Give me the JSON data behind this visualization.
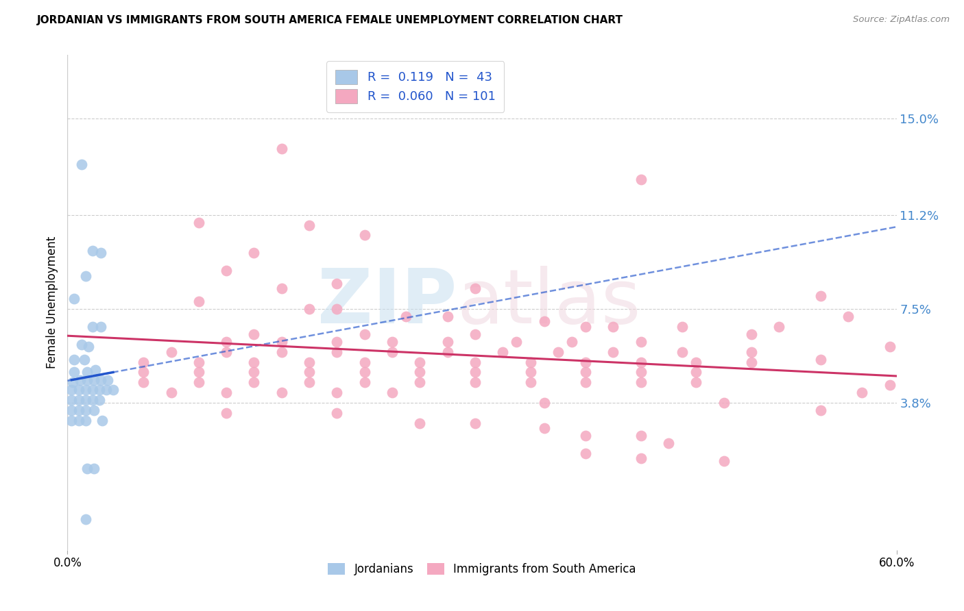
{
  "title": "JORDANIAN VS IMMIGRANTS FROM SOUTH AMERICA FEMALE UNEMPLOYMENT CORRELATION CHART",
  "source": "Source: ZipAtlas.com",
  "ylabel": "Female Unemployment",
  "watermark_zip": "ZIP",
  "watermark_atlas": "atlas",
  "xlim": [
    0.0,
    0.6
  ],
  "ylim": [
    -0.02,
    0.175
  ],
  "y_ticks": [
    0.038,
    0.075,
    0.112,
    0.15
  ],
  "y_tick_labels": [
    "3.8%",
    "7.5%",
    "11.2%",
    "15.0%"
  ],
  "x_ticks": [
    0.0,
    0.6
  ],
  "x_tick_labels": [
    "0.0%",
    "60.0%"
  ],
  "jordan_color": "#a8c8e8",
  "sa_color": "#f4a8c0",
  "jordan_line_color": "#2255cc",
  "sa_line_color": "#cc3366",
  "background_color": "#ffffff",
  "grid_color": "#cccccc",
  "jordan_points": [
    [
      0.01,
      0.132
    ],
    [
      0.018,
      0.098
    ],
    [
      0.024,
      0.097
    ],
    [
      0.013,
      0.088
    ],
    [
      0.005,
      0.079
    ],
    [
      0.018,
      0.068
    ],
    [
      0.024,
      0.068
    ],
    [
      0.01,
      0.061
    ],
    [
      0.015,
      0.06
    ],
    [
      0.005,
      0.055
    ],
    [
      0.012,
      0.055
    ],
    [
      0.005,
      0.05
    ],
    [
      0.014,
      0.05
    ],
    [
      0.02,
      0.051
    ],
    [
      0.004,
      0.046
    ],
    [
      0.009,
      0.047
    ],
    [
      0.014,
      0.047
    ],
    [
      0.019,
      0.047
    ],
    [
      0.024,
      0.047
    ],
    [
      0.029,
      0.047
    ],
    [
      0.003,
      0.043
    ],
    [
      0.008,
      0.043
    ],
    [
      0.013,
      0.043
    ],
    [
      0.018,
      0.043
    ],
    [
      0.023,
      0.043
    ],
    [
      0.028,
      0.043
    ],
    [
      0.033,
      0.043
    ],
    [
      0.003,
      0.039
    ],
    [
      0.008,
      0.039
    ],
    [
      0.013,
      0.039
    ],
    [
      0.018,
      0.039
    ],
    [
      0.023,
      0.039
    ],
    [
      0.003,
      0.035
    ],
    [
      0.008,
      0.035
    ],
    [
      0.013,
      0.035
    ],
    [
      0.019,
      0.035
    ],
    [
      0.003,
      0.031
    ],
    [
      0.008,
      0.031
    ],
    [
      0.013,
      0.031
    ],
    [
      0.025,
      0.031
    ],
    [
      0.014,
      0.012
    ],
    [
      0.019,
      0.012
    ],
    [
      0.013,
      -0.008
    ]
  ],
  "sa_points": [
    [
      0.155,
      0.138
    ],
    [
      0.415,
      0.126
    ],
    [
      0.095,
      0.109
    ],
    [
      0.175,
      0.108
    ],
    [
      0.215,
      0.104
    ],
    [
      0.135,
      0.097
    ],
    [
      0.115,
      0.09
    ],
    [
      0.195,
      0.085
    ],
    [
      0.155,
      0.083
    ],
    [
      0.295,
      0.083
    ],
    [
      0.545,
      0.08
    ],
    [
      0.095,
      0.078
    ],
    [
      0.175,
      0.075
    ],
    [
      0.195,
      0.075
    ],
    [
      0.245,
      0.072
    ],
    [
      0.275,
      0.072
    ],
    [
      0.345,
      0.07
    ],
    [
      0.375,
      0.068
    ],
    [
      0.395,
      0.068
    ],
    [
      0.445,
      0.068
    ],
    [
      0.135,
      0.065
    ],
    [
      0.215,
      0.065
    ],
    [
      0.295,
      0.065
    ],
    [
      0.115,
      0.062
    ],
    [
      0.155,
      0.062
    ],
    [
      0.195,
      0.062
    ],
    [
      0.235,
      0.062
    ],
    [
      0.275,
      0.062
    ],
    [
      0.325,
      0.062
    ],
    [
      0.365,
      0.062
    ],
    [
      0.415,
      0.062
    ],
    [
      0.075,
      0.058
    ],
    [
      0.115,
      0.058
    ],
    [
      0.155,
      0.058
    ],
    [
      0.195,
      0.058
    ],
    [
      0.235,
      0.058
    ],
    [
      0.275,
      0.058
    ],
    [
      0.315,
      0.058
    ],
    [
      0.355,
      0.058
    ],
    [
      0.395,
      0.058
    ],
    [
      0.445,
      0.058
    ],
    [
      0.495,
      0.058
    ],
    [
      0.055,
      0.054
    ],
    [
      0.095,
      0.054
    ],
    [
      0.135,
      0.054
    ],
    [
      0.175,
      0.054
    ],
    [
      0.215,
      0.054
    ],
    [
      0.255,
      0.054
    ],
    [
      0.295,
      0.054
    ],
    [
      0.335,
      0.054
    ],
    [
      0.375,
      0.054
    ],
    [
      0.415,
      0.054
    ],
    [
      0.455,
      0.054
    ],
    [
      0.495,
      0.054
    ],
    [
      0.055,
      0.05
    ],
    [
      0.095,
      0.05
    ],
    [
      0.135,
      0.05
    ],
    [
      0.175,
      0.05
    ],
    [
      0.215,
      0.05
    ],
    [
      0.255,
      0.05
    ],
    [
      0.295,
      0.05
    ],
    [
      0.335,
      0.05
    ],
    [
      0.375,
      0.05
    ],
    [
      0.415,
      0.05
    ],
    [
      0.455,
      0.05
    ],
    [
      0.055,
      0.046
    ],
    [
      0.095,
      0.046
    ],
    [
      0.135,
      0.046
    ],
    [
      0.175,
      0.046
    ],
    [
      0.215,
      0.046
    ],
    [
      0.255,
      0.046
    ],
    [
      0.295,
      0.046
    ],
    [
      0.335,
      0.046
    ],
    [
      0.375,
      0.046
    ],
    [
      0.415,
      0.046
    ],
    [
      0.455,
      0.046
    ],
    [
      0.075,
      0.042
    ],
    [
      0.115,
      0.042
    ],
    [
      0.155,
      0.042
    ],
    [
      0.195,
      0.042
    ],
    [
      0.235,
      0.042
    ],
    [
      0.345,
      0.038
    ],
    [
      0.475,
      0.038
    ],
    [
      0.115,
      0.034
    ],
    [
      0.195,
      0.034
    ],
    [
      0.255,
      0.03
    ],
    [
      0.295,
      0.03
    ],
    [
      0.345,
      0.028
    ],
    [
      0.375,
      0.025
    ],
    [
      0.415,
      0.025
    ],
    [
      0.435,
      0.022
    ],
    [
      0.375,
      0.018
    ],
    [
      0.415,
      0.016
    ],
    [
      0.475,
      0.015
    ],
    [
      0.545,
      0.035
    ],
    [
      0.595,
      0.045
    ],
    [
      0.575,
      0.042
    ],
    [
      0.545,
      0.055
    ],
    [
      0.495,
      0.065
    ],
    [
      0.595,
      0.06
    ],
    [
      0.515,
      0.068
    ],
    [
      0.565,
      0.072
    ]
  ]
}
